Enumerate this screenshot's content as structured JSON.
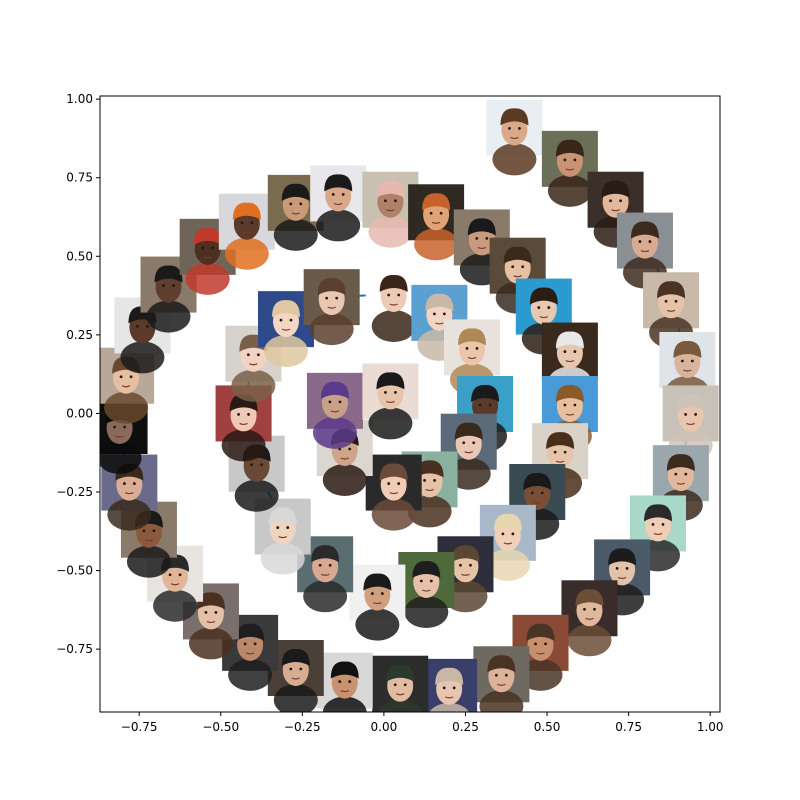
{
  "chart_data": {
    "type": "scatter",
    "title": "",
    "xlabel": "",
    "ylabel": "",
    "xlim": [
      -0.87,
      1.03
    ],
    "ylim": [
      -0.95,
      1.01
    ],
    "grid": false,
    "x_ticks": [
      -0.75,
      -0.5,
      -0.25,
      0.0,
      0.25,
      0.5,
      0.75,
      1.0
    ],
    "x_tick_labels": [
      "−0.75",
      "−0.50",
      "−0.25",
      "0.00",
      "0.25",
      "0.50",
      "0.75",
      "1.00"
    ],
    "y_ticks": [
      -0.75,
      -0.5,
      -0.25,
      0.0,
      0.25,
      0.5,
      0.75,
      1.0
    ],
    "y_tick_labels": [
      "−0.75",
      "−0.50",
      "−0.25",
      "0.00",
      "0.25",
      "0.50",
      "0.75",
      "1.00"
    ],
    "line_color": "#1f77b4",
    "marker": "face-thumbnail",
    "series": [
      {
        "values": [
          {
            "x": 0.4,
            "y": 0.91
          },
          {
            "x": 0.57,
            "y": 0.81
          },
          {
            "x": 0.71,
            "y": 0.68
          },
          {
            "x": 0.8,
            "y": 0.55
          },
          {
            "x": 0.88,
            "y": 0.36
          },
          {
            "x": 0.93,
            "y": 0.17
          },
          {
            "x": 0.94,
            "y": 0.0
          },
          {
            "x": 0.91,
            "y": -0.19
          },
          {
            "x": 0.84,
            "y": -0.35
          },
          {
            "x": 0.73,
            "y": -0.49
          },
          {
            "x": 0.63,
            "y": -0.62
          },
          {
            "x": 0.48,
            "y": -0.73
          },
          {
            "x": 0.36,
            "y": -0.83
          },
          {
            "x": 0.2,
            "y": -0.87
          },
          {
            "x": 0.05,
            "y": -0.86
          },
          {
            "x": -0.12,
            "y": -0.85
          },
          {
            "x": -0.27,
            "y": -0.81
          },
          {
            "x": -0.41,
            "y": -0.73
          },
          {
            "x": -0.53,
            "y": -0.63
          },
          {
            "x": -0.64,
            "y": -0.51
          },
          {
            "x": -0.72,
            "y": -0.37
          },
          {
            "x": -0.78,
            "y": -0.22
          },
          {
            "x": -0.81,
            "y": -0.04
          },
          {
            "x": -0.79,
            "y": 0.12
          },
          {
            "x": -0.74,
            "y": 0.28
          },
          {
            "x": -0.66,
            "y": 0.41
          },
          {
            "x": -0.54,
            "y": 0.53
          },
          {
            "x": -0.42,
            "y": 0.61
          },
          {
            "x": -0.27,
            "y": 0.67
          },
          {
            "x": -0.14,
            "y": 0.7
          },
          {
            "x": 0.02,
            "y": 0.68
          },
          {
            "x": 0.16,
            "y": 0.64
          },
          {
            "x": 0.3,
            "y": 0.56
          },
          {
            "x": 0.41,
            "y": 0.47
          },
          {
            "x": 0.49,
            "y": 0.34
          },
          {
            "x": 0.57,
            "y": 0.2
          },
          {
            "x": 0.57,
            "y": 0.03
          },
          {
            "x": 0.54,
            "y": -0.12
          },
          {
            "x": 0.47,
            "y": -0.25
          },
          {
            "x": 0.38,
            "y": -0.38
          },
          {
            "x": 0.25,
            "y": -0.48
          },
          {
            "x": 0.13,
            "y": -0.53
          },
          {
            "x": -0.02,
            "y": -0.57
          },
          {
            "x": -0.18,
            "y": -0.48
          },
          {
            "x": -0.31,
            "y": -0.36
          },
          {
            "x": -0.39,
            "y": -0.16
          },
          {
            "x": -0.43,
            "y": 0.0
          },
          {
            "x": -0.4,
            "y": 0.19
          },
          {
            "x": -0.3,
            "y": 0.3
          },
          {
            "x": -0.16,
            "y": 0.37
          },
          {
            "x": 0.03,
            "y": 0.38
          },
          {
            "x": 0.17,
            "y": 0.32
          },
          {
            "x": 0.27,
            "y": 0.21
          },
          {
            "x": 0.31,
            "y": 0.03
          },
          {
            "x": 0.26,
            "y": -0.09
          },
          {
            "x": 0.14,
            "y": -0.21
          },
          {
            "x": 0.03,
            "y": -0.22
          },
          {
            "x": -0.12,
            "y": -0.11
          },
          {
            "x": -0.15,
            "y": 0.04
          },
          {
            "x": 0.02,
            "y": 0.07
          }
        ]
      }
    ],
    "thumbnail_colors": [
      {
        "skin": "#d9a98a",
        "hair": "#5a3a22",
        "bg": "#e8eef2"
      },
      {
        "skin": "#c99474",
        "hair": "#3a2618",
        "bg": "#6b6f57"
      },
      {
        "skin": "#e2b89a",
        "hair": "#2a1c14",
        "bg": "#3b2f2a"
      },
      {
        "skin": "#d8ab90",
        "hair": "#3d2a1e",
        "bg": "#8a8f94"
      },
      {
        "skin": "#e6c2a8",
        "hair": "#4a3324",
        "bg": "#c9b9a8"
      },
      {
        "skin": "#d9b49c",
        "hair": "#7a5a3e",
        "bg": "#dfe4e8"
      },
      {
        "skin": "#e8c6ae",
        "hair": "#cfc3b8",
        "bg": "#c7c1b8"
      },
      {
        "skin": "#e3b79b",
        "hair": "#3c2a1e",
        "bg": "#9aa7ad"
      },
      {
        "skin": "#f0cdb6",
        "hair": "#2a2a2a",
        "bg": "#a8d8c8"
      },
      {
        "skin": "#e2c2a9",
        "hair": "#1c1c1c",
        "bg": "#4a5a68"
      },
      {
        "skin": "#e0b89c",
        "hair": "#6a4e36",
        "bg": "#3a2c2a"
      },
      {
        "skin": "#c88f6e",
        "hair": "#4a3426",
        "bg": "#8a4a36"
      },
      {
        "skin": "#dcb39a",
        "hair": "#4a3322",
        "bg": "#6e6a62"
      },
      {
        "skin": "#e6c6b2",
        "hair": "#c9b7a6",
        "bg": "#3a3e6a"
      },
      {
        "skin": "#e2bca2",
        "hair": "#2b3a2b",
        "bg": "#2c2c2c"
      },
      {
        "skin": "#c9926e",
        "hair": "#111111",
        "bg": "#d8d8d8"
      },
      {
        "skin": "#d6ad92",
        "hair": "#1a1a1a",
        "bg": "#4a4038"
      },
      {
        "skin": "#b9896a",
        "hair": "#1e1e1e",
        "bg": "#3a3a3a"
      },
      {
        "skin": "#e4c0a6",
        "hair": "#4a3020",
        "bg": "#7b6f6b"
      },
      {
        "skin": "#e0b598",
        "hair": "#2a2a2a",
        "bg": "#e8e4e0"
      },
      {
        "skin": "#8a5a3e",
        "hair": "#1a1a1a",
        "bg": "#8a7a6a"
      },
      {
        "skin": "#d9ae94",
        "hair": "#3a2a1e",
        "bg": "#6a6a8a"
      },
      {
        "skin": "#8a6a5a",
        "hair": "#0a0a0a",
        "bg": "#0e0e0e"
      },
      {
        "skin": "#e6bea2",
        "hair": "#6a4a2e",
        "bg": "#b8a89a"
      },
      {
        "skin": "#5a3a2a",
        "hair": "#1a1a1a",
        "bg": "#e6e6e6"
      },
      {
        "skin": "#5e3e2e",
        "hair": "#1a1a1a",
        "bg": "#8a7a6a"
      },
      {
        "skin": "#4e3022",
        "hair": "#c0392b",
        "bg": "#6e6458"
      },
      {
        "skin": "#5a3a2a",
        "hair": "#e07020",
        "bg": "#d8d8dc"
      },
      {
        "skin": "#c89a78",
        "hair": "#1a1a1a",
        "bg": "#7a6a4e"
      },
      {
        "skin": "#d8a888",
        "hair": "#1a1a1a",
        "bg": "#e8e8ec"
      },
      {
        "skin": "#b08068",
        "hair": "#e6b8b0",
        "bg": "#c8c0b0"
      },
      {
        "skin": "#e2a278",
        "hair": "#c8622a",
        "bg": "#2e2a22"
      },
      {
        "skin": "#c89a7e",
        "hair": "#1a1a1a",
        "bg": "#8a7a6a"
      },
      {
        "skin": "#e6c0a0",
        "hair": "#3a2a1e",
        "bg": "#5a4a3a"
      },
      {
        "skin": "#e8c8b0",
        "hair": "#2a1e14",
        "bg": "#2a9ad0"
      },
      {
        "skin": "#e6c6ae",
        "hair": "#e8e8e8",
        "bg": "#3a2a1e"
      },
      {
        "skin": "#e8c0a0",
        "hair": "#8a5a2a",
        "bg": "#4a9ad8"
      },
      {
        "skin": "#e6c4aa",
        "hair": "#4a2e1a",
        "bg": "#d8d2c8"
      },
      {
        "skin": "#7a4e36",
        "hair": "#1a1a1a",
        "bg": "#3a4a52"
      },
      {
        "skin": "#f0d0b8",
        "hair": "#e6d6b0",
        "bg": "#a8b8c8"
      },
      {
        "skin": "#e6c2a6",
        "hair": "#5a4632",
        "bg": "#2e2e3a"
      },
      {
        "skin": "#e6c0a8",
        "hair": "#1e1e1e",
        "bg": "#4e6a3a"
      },
      {
        "skin": "#d0a07e",
        "hair": "#1a1a1a",
        "bg": "#f0f0f0"
      },
      {
        "skin": "#d8a890",
        "hair": "#2a2a2a",
        "bg": "#5a6e72"
      },
      {
        "skin": "#f0d4c2",
        "hair": "#d8d8d8",
        "bg": "#c8c8c8"
      },
      {
        "skin": "#6a4a36",
        "hair": "#1a1a1a",
        "bg": "#c8c8c8"
      },
      {
        "skin": "#f0c8b8",
        "hair": "#2a1a14",
        "bg": "#a04040"
      },
      {
        "skin": "#f2d2c2",
        "hair": "#7a6048",
        "bg": "#d8d2cc"
      },
      {
        "skin": "#f4d6c4",
        "hair": "#e0c8a0",
        "bg": "#2e4a8a"
      },
      {
        "skin": "#e8c8b2",
        "hair": "#5a3e2e",
        "bg": "#6a5a4a"
      },
      {
        "skin": "#eccab6",
        "hair": "#3a2618",
        "bg": "#ffffff"
      },
      {
        "skin": "#f2d4c2",
        "hair": "#c8b8a8",
        "bg": "#5aa0d0"
      },
      {
        "skin": "#eac6aa",
        "hair": "#b08858",
        "bg": "#e8e2dc"
      },
      {
        "skin": "#5a3a2a",
        "hair": "#1a1a1a",
        "bg": "#3aa0c8"
      },
      {
        "skin": "#e8c8b4",
        "hair": "#3a2a1e",
        "bg": "#5a6a78"
      },
      {
        "skin": "#e6c2a8",
        "hair": "#4a3020",
        "bg": "#8ab0a0"
      },
      {
        "skin": "#f0ccb4",
        "hair": "#6a4a3a",
        "bg": "#2a2a2a"
      },
      {
        "skin": "#d0a488",
        "hair": "#2a1a12",
        "bg": "#dcd6d0"
      },
      {
        "skin": "#c8a088",
        "hair": "#5a3a8a",
        "bg": "#8a6a8a"
      },
      {
        "skin": "#e8c4a8",
        "hair": "#1a1a1a",
        "bg": "#eadcd4"
      }
    ]
  }
}
